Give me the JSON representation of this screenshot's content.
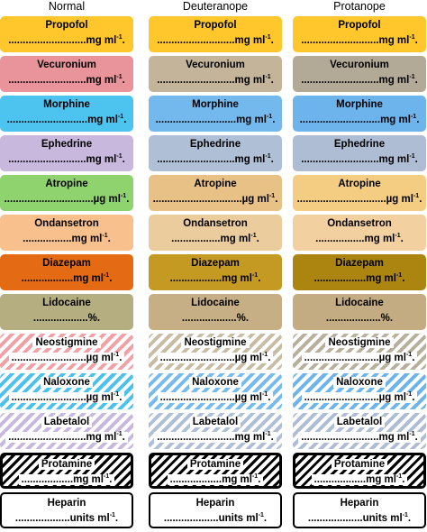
{
  "headers": [
    "Normal",
    "Deuteranope",
    "Protanope"
  ],
  "labels": [
    {
      "drug": "Propofol",
      "dots": "...........................",
      "unit": "mg ml",
      "exp": "-1",
      "end": ".",
      "style": "solid",
      "colors": [
        "#FFC72C",
        "#FFC72C",
        "#FFC72C"
      ]
    },
    {
      "drug": "Vecuronium",
      "dots": "...........................",
      "unit": "mg ml",
      "exp": "-1",
      "end": ".",
      "style": "solid",
      "colors": [
        "#E8949A",
        "#C4B59A",
        "#B2AA96"
      ]
    },
    {
      "drug": "Morphine",
      "dots": "............................",
      "unit": "mg ml",
      "exp": "-1",
      "end": ".",
      "style": "solid",
      "colors": [
        "#4DC3F0",
        "#74B9EE",
        "#6DB4EC"
      ]
    },
    {
      "drug": "Ephedrine",
      "dots": "...........................",
      "unit": "mg ml",
      "exp": "-1",
      "end": ".",
      "style": "solid",
      "colors": [
        "#C9B8DE",
        "#AFC0D6",
        "#AEBDD4"
      ]
    },
    {
      "drug": "Atropine",
      "dots": "...............................",
      "unit": "µg ml",
      "exp": "-1",
      "end": ".",
      "style": "solid",
      "colors": [
        "#8ED36E",
        "#E8C187",
        "#F4CD82"
      ]
    },
    {
      "drug": "Ondansetron",
      "dots": ".................",
      "unit": "mg ml",
      "exp": "-1",
      "end": ".",
      "style": "solid",
      "colors": [
        "#F8C08C",
        "#EACC9D",
        "#F2D0A0"
      ]
    },
    {
      "drug": "Diazepam",
      "dots": "..................",
      "unit": "mg ml",
      "exp": "-1",
      "end": ".",
      "style": "solid",
      "colors": [
        "#E46B14",
        "#C59A22",
        "#AC8511"
      ]
    },
    {
      "drug": "Lidocaine",
      "dots": "...................",
      "unit": "%",
      "exp": "",
      "end": ".",
      "style": "solid",
      "colors": [
        "#B5AE81",
        "#C6AE85",
        "#C3AC82"
      ]
    },
    {
      "drug": "Neostigmine",
      "dots": "..........................",
      "unit": "µg ml",
      "exp": "-1",
      "end": ".",
      "style": "stripe",
      "colors": [
        "#F1A1A6",
        "#C8BDA4",
        "#B8B09C"
      ]
    },
    {
      "drug": "Naloxone",
      "dots": "..........................",
      "unit": "µg ml",
      "exp": "-1",
      "end": ".",
      "style": "stripe",
      "colors": [
        "#4CC1EE",
        "#77BAEE",
        "#6DB4EC"
      ]
    },
    {
      "drug": "Labetalol",
      "dots": "...........................",
      "unit": "mg ml",
      "exp": "-1",
      "end": ".",
      "style": "stripe",
      "colors": [
        "#C8B8DE",
        "#AFC0D6",
        "#AEBDD4"
      ]
    },
    {
      "drug": "Protamine",
      "dots": "..................",
      "unit": "mg ml",
      "exp": "-1",
      "end": ".",
      "style": "blackstripe",
      "colors": [
        "#000000",
        "#000000",
        "#000000"
      ]
    },
    {
      "drug": "Heparin",
      "dots": "...................",
      "unit": "units ml",
      "exp": "-1",
      "end": ".",
      "style": "plain",
      "colors": [
        "#ffffff",
        "#ffffff",
        "#ffffff"
      ]
    }
  ]
}
